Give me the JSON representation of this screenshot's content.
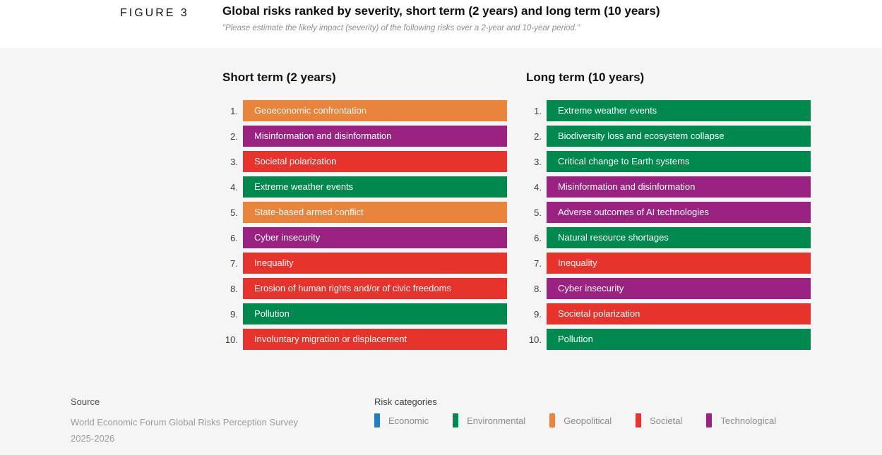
{
  "header": {
    "figure_label": "FIGURE 3",
    "title": "Global risks ranked by severity, short term (2 years) and long term (10 years)",
    "subtitle": "\"Please estimate the likely impact (severity) of the following risks over a 2-year and 10-year period.\""
  },
  "colors": {
    "Economic": "#1F80C4",
    "Environmental": "#00894F",
    "Geopolitical": "#E8843C",
    "Societal": "#E6332B",
    "Technological": "#9A2381"
  },
  "chart_data": {
    "type": "table",
    "title": "Global risks ranked by severity, short term (2 years) and long term (10 years)",
    "subtitle": "\"Please estimate the likely impact (severity) of the following risks over a 2-year and 10-year period.\"",
    "columns": [
      {
        "heading": "Short term (2 years)",
        "items": [
          {
            "rank": 1,
            "label": "Geoeconomic confrontation",
            "category": "Geopolitical"
          },
          {
            "rank": 2,
            "label": "Misinformation and disinformation",
            "category": "Technological"
          },
          {
            "rank": 3,
            "label": "Societal polarization",
            "category": "Societal"
          },
          {
            "rank": 4,
            "label": "Extreme weather events",
            "category": "Environmental"
          },
          {
            "rank": 5,
            "label": "State-based armed conflict",
            "category": "Geopolitical"
          },
          {
            "rank": 6,
            "label": "Cyber insecurity",
            "category": "Technological"
          },
          {
            "rank": 7,
            "label": "Inequality",
            "category": "Societal"
          },
          {
            "rank": 8,
            "label": "Erosion of human rights and/or of civic freedoms",
            "category": "Societal"
          },
          {
            "rank": 9,
            "label": "Pollution",
            "category": "Environmental"
          },
          {
            "rank": 10,
            "label": "Involuntary migration or displacement",
            "category": "Societal"
          }
        ]
      },
      {
        "heading": "Long term (10 years)",
        "items": [
          {
            "rank": 1,
            "label": "Extreme weather events",
            "category": "Environmental"
          },
          {
            "rank": 2,
            "label": "Biodiversity loss and ecosystem collapse",
            "category": "Environmental"
          },
          {
            "rank": 3,
            "label": "Critical change to Earth systems",
            "category": "Environmental"
          },
          {
            "rank": 4,
            "label": "Misinformation and disinformation",
            "category": "Technological"
          },
          {
            "rank": 5,
            "label": "Adverse outcomes of AI technologies",
            "category": "Technological"
          },
          {
            "rank": 6,
            "label": "Natural resource shortages",
            "category": "Environmental"
          },
          {
            "rank": 7,
            "label": "Inequality",
            "category": "Societal"
          },
          {
            "rank": 8,
            "label": "Cyber insecurity",
            "category": "Technological"
          },
          {
            "rank": 9,
            "label": "Societal polarization",
            "category": "Societal"
          },
          {
            "rank": 10,
            "label": "Pollution",
            "category": "Environmental"
          }
        ]
      }
    ],
    "legend": {
      "title": "Risk categories",
      "entries": [
        {
          "label": "Economic",
          "category": "Economic"
        },
        {
          "label": "Environmental",
          "category": "Environmental"
        },
        {
          "label": "Geopolitical",
          "category": "Geopolitical"
        },
        {
          "label": "Societal",
          "category": "Societal"
        },
        {
          "label": "Technological",
          "category": "Technological"
        }
      ]
    }
  },
  "footer": {
    "source_label": "Source",
    "source_lines": [
      "World Economic Forum Global Risks Perception Survey",
      "2025-2026"
    ],
    "legend_title": "Risk categories"
  }
}
